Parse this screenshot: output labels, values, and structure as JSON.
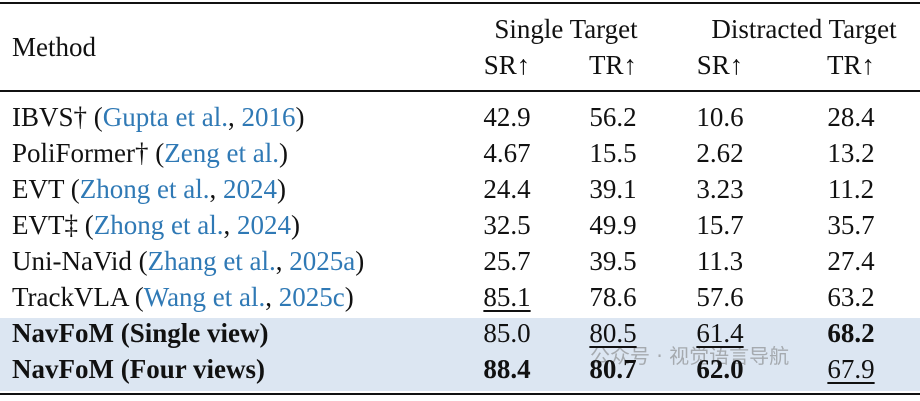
{
  "table": {
    "header": {
      "method": "Method",
      "groups": [
        "Single Target",
        "Distracted Target"
      ],
      "metrics": [
        "SR↑",
        "TR↑",
        "SR↑",
        "TR↑"
      ]
    },
    "rows": [
      {
        "method": [
          {
            "text": "IBVS† ("
          },
          {
            "text": "Gupta et al.",
            "link": true
          },
          {
            "text": ", "
          },
          {
            "text": "2016",
            "link": true
          },
          {
            "text": ")"
          }
        ],
        "cells": [
          {
            "text": "42.9"
          },
          {
            "text": "56.2"
          },
          {
            "text": "10.6"
          },
          {
            "text": "28.4"
          }
        ]
      },
      {
        "method": [
          {
            "text": "PoliFormer† ("
          },
          {
            "text": "Zeng et al.",
            "link": true
          },
          {
            "text": ")"
          }
        ],
        "cells": [
          {
            "text": "4.67"
          },
          {
            "text": "15.5"
          },
          {
            "text": "2.62"
          },
          {
            "text": "13.2"
          }
        ]
      },
      {
        "method": [
          {
            "text": "EVT ("
          },
          {
            "text": "Zhong et al.",
            "link": true
          },
          {
            "text": ", "
          },
          {
            "text": "2024",
            "link": true
          },
          {
            "text": ")"
          }
        ],
        "cells": [
          {
            "text": "24.4"
          },
          {
            "text": "39.1"
          },
          {
            "text": "3.23"
          },
          {
            "text": "11.2"
          }
        ]
      },
      {
        "method": [
          {
            "text": "EVT‡ ("
          },
          {
            "text": "Zhong et al.",
            "link": true
          },
          {
            "text": ", "
          },
          {
            "text": "2024",
            "link": true
          },
          {
            "text": ")"
          }
        ],
        "cells": [
          {
            "text": "32.5"
          },
          {
            "text": "49.9"
          },
          {
            "text": "15.7"
          },
          {
            "text": "35.7"
          }
        ]
      },
      {
        "method": [
          {
            "text": "Uni-NaVid ("
          },
          {
            "text": "Zhang et al.",
            "link": true
          },
          {
            "text": ", "
          },
          {
            "text": "2025a",
            "link": true
          },
          {
            "text": ")"
          }
        ],
        "cells": [
          {
            "text": "25.7"
          },
          {
            "text": "39.5"
          },
          {
            "text": "11.3"
          },
          {
            "text": "27.4"
          }
        ]
      },
      {
        "method": [
          {
            "text": "TrackVLA ("
          },
          {
            "text": "Wang et al.",
            "link": true
          },
          {
            "text": ", "
          },
          {
            "text": "2025c",
            "link": true
          },
          {
            "text": ")"
          }
        ],
        "cells": [
          {
            "text": "85.1",
            "style": "underline"
          },
          {
            "text": "78.6"
          },
          {
            "text": "57.6"
          },
          {
            "text": "63.2"
          }
        ]
      },
      {
        "method": [
          {
            "text": "NavFoM (Single view)",
            "style": "bold"
          }
        ],
        "cells": [
          {
            "text": "85.0"
          },
          {
            "text": "80.5",
            "style": "underline"
          },
          {
            "text": "61.4",
            "style": "underline"
          },
          {
            "text": "68.2",
            "style": "bold"
          }
        ]
      },
      {
        "method": [
          {
            "text": "NavFoM (Four views)",
            "style": "bold"
          }
        ],
        "cells": [
          {
            "text": "88.4",
            "style": "bold"
          },
          {
            "text": "80.7",
            "style": "bold"
          },
          {
            "text": "62.0",
            "style": "bold"
          },
          {
            "text": "67.9",
            "style": "underline"
          }
        ]
      }
    ]
  },
  "watermark": "公众号 · 视觉语言导航"
}
